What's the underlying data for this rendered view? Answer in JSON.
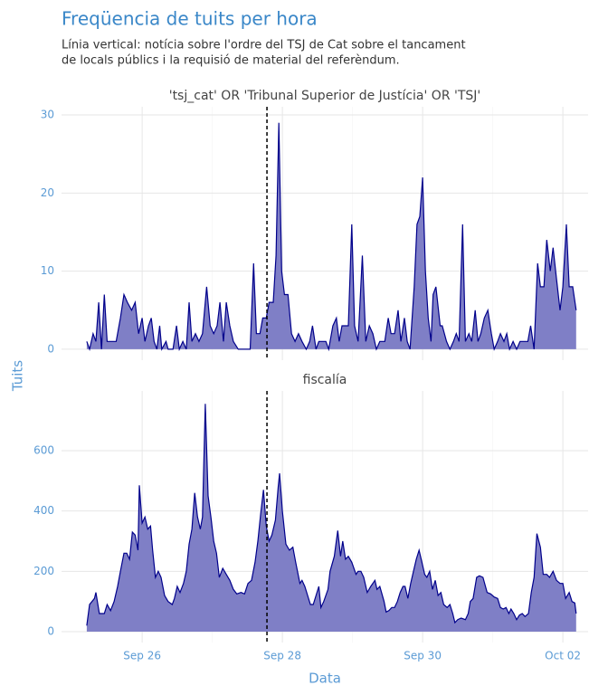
{
  "title": "Freqüencia de tuits per hora",
  "subtitle": [
    "Línia vertical: notícia sobre l'ordre del TSJ de Cat sobre el tancament",
    "de locals públics i la requisió de material del referèndum."
  ],
  "xlabel": "Data",
  "ylabel": "Tuits",
  "xlim": [
    24.85,
    32.36
  ],
  "xticks": [
    {
      "value": 26,
      "label": "Sep 26"
    },
    {
      "value": 28,
      "label": "Sep 28"
    },
    {
      "value": 30,
      "label": "Sep 30"
    },
    {
      "value": 32,
      "label": "Oct 02"
    }
  ],
  "xminor": [
    27,
    29,
    31
  ],
  "vline": 27.78,
  "chart_data": [
    {
      "type": "area",
      "title": "'tsj_cat' OR 'Tribunal Superior de Justícia' OR 'TSJ'",
      "color": "#00008b",
      "fill": "#7f7fc6",
      "ylim": [
        -1.4,
        31.05
      ],
      "yticks": [
        0,
        10,
        20,
        30
      ],
      "grid": true,
      "x": [
        25.21,
        25.25,
        25.3,
        25.34,
        25.38,
        25.42,
        25.46,
        25.5,
        25.63,
        25.69,
        25.74,
        25.79,
        25.85,
        25.9,
        25.95,
        26.0,
        26.04,
        26.09,
        26.13,
        26.17,
        26.21,
        26.25,
        26.28,
        26.34,
        26.37,
        26.44,
        26.49,
        26.53,
        26.58,
        26.63,
        26.67,
        26.71,
        26.76,
        26.81,
        26.86,
        26.92,
        26.97,
        27.02,
        27.07,
        27.11,
        27.16,
        27.2,
        27.25,
        27.3,
        27.37,
        27.54,
        27.59,
        27.63,
        27.68,
        27.72,
        27.77,
        27.81,
        27.87,
        27.91,
        27.95,
        27.99,
        28.03,
        28.08,
        28.13,
        28.18,
        28.23,
        28.28,
        28.34,
        28.39,
        28.43,
        28.48,
        28.52,
        28.62,
        28.66,
        28.72,
        28.77,
        28.81,
        28.85,
        28.94,
        28.99,
        29.03,
        29.08,
        29.14,
        29.19,
        29.24,
        29.29,
        29.34,
        29.39,
        29.46,
        29.51,
        29.55,
        29.6,
        29.65,
        29.69,
        29.74,
        29.78,
        29.82,
        29.88,
        29.92,
        29.96,
        30.0,
        30.04,
        30.08,
        30.12,
        30.15,
        30.19,
        30.25,
        30.28,
        30.34,
        30.39,
        30.44,
        30.48,
        30.52,
        30.57,
        30.61,
        30.66,
        30.7,
        30.75,
        30.79,
        30.83,
        30.88,
        30.93,
        30.98,
        31.02,
        31.07,
        31.11,
        31.16,
        31.2,
        31.24,
        31.29,
        31.34,
        31.39,
        31.45,
        31.5,
        31.54,
        31.59,
        31.64,
        31.68,
        31.73,
        31.77,
        31.82,
        31.86,
        31.91,
        31.96,
        32.0,
        32.05,
        32.09,
        32.14,
        32.19
      ],
      "values": [
        1,
        0,
        2,
        1,
        6,
        0,
        7,
        1,
        1,
        4,
        7,
        6,
        5,
        6,
        2,
        4,
        1,
        3,
        4,
        1,
        0,
        3,
        0,
        1,
        0,
        0,
        3,
        0,
        1,
        0,
        6,
        1,
        2,
        1,
        2,
        8,
        3,
        2,
        3,
        6,
        1,
        6,
        3,
        1,
        0,
        0,
        11,
        2,
        2,
        4,
        4,
        6,
        6,
        12,
        29,
        10,
        7,
        7,
        2,
        1,
        2,
        1,
        0,
        1,
        3,
        0,
        1,
        1,
        0,
        3,
        4,
        1,
        3,
        3,
        16,
        3,
        1,
        12,
        1,
        3,
        2,
        0,
        1,
        1,
        4,
        2,
        2,
        5,
        1,
        4,
        1,
        0,
        8,
        16,
        17,
        22,
        10,
        4,
        1,
        7,
        8,
        3,
        3,
        1,
        0,
        1,
        2,
        1,
        16,
        1,
        2,
        1,
        5,
        1,
        2,
        4,
        5,
        2,
        0,
        1,
        2,
        1,
        2,
        0,
        1,
        0,
        1,
        1,
        1,
        3,
        0,
        11,
        8,
        8,
        14,
        10,
        13,
        9,
        5,
        8,
        16,
        8,
        8,
        5
      ]
    },
    {
      "type": "area",
      "title": "fiscalía",
      "color": "#00008b",
      "fill": "#7f7fc6",
      "ylim": [
        -36,
        798
      ],
      "yticks": [
        0,
        200,
        400,
        600
      ],
      "grid": true,
      "x": [
        25.21,
        25.25,
        25.32,
        25.34,
        25.39,
        25.46,
        25.5,
        25.55,
        25.6,
        25.65,
        25.69,
        25.74,
        25.78,
        25.82,
        25.86,
        25.9,
        25.94,
        25.96,
        26.0,
        26.04,
        26.08,
        26.12,
        26.15,
        26.19,
        26.23,
        26.27,
        26.32,
        26.37,
        26.43,
        26.46,
        26.5,
        26.54,
        26.59,
        26.63,
        26.67,
        26.71,
        26.75,
        26.79,
        26.83,
        26.86,
        26.9,
        26.94,
        26.98,
        27.02,
        27.06,
        27.1,
        27.15,
        27.2,
        27.25,
        27.3,
        27.35,
        27.41,
        27.46,
        27.51,
        27.56,
        27.61,
        27.65,
        27.69,
        27.73,
        27.77,
        27.81,
        27.85,
        27.9,
        27.94,
        27.96,
        28.0,
        28.05,
        28.1,
        28.15,
        28.19,
        28.25,
        28.28,
        28.32,
        28.36,
        28.4,
        28.44,
        28.48,
        28.52,
        28.55,
        28.59,
        28.65,
        28.68,
        28.74,
        28.79,
        28.83,
        28.86,
        28.9,
        28.94,
        28.99,
        29.05,
        29.08,
        29.12,
        29.16,
        29.21,
        29.26,
        29.32,
        29.35,
        29.39,
        29.45,
        29.48,
        29.52,
        29.56,
        29.6,
        29.64,
        29.68,
        29.72,
        29.75,
        29.79,
        29.83,
        29.87,
        29.91,
        29.95,
        29.99,
        30.03,
        30.06,
        30.1,
        30.14,
        30.18,
        30.22,
        30.26,
        30.3,
        30.35,
        30.39,
        30.43,
        30.46,
        30.5,
        30.55,
        30.61,
        30.65,
        30.68,
        30.72,
        30.77,
        30.81,
        30.86,
        30.92,
        30.97,
        31.02,
        31.07,
        31.11,
        31.15,
        31.19,
        31.23,
        31.26,
        31.3,
        31.34,
        31.38,
        31.42,
        31.46,
        31.51,
        31.55,
        31.59,
        31.63,
        31.68,
        31.72,
        31.77,
        31.81,
        31.86,
        31.91,
        31.96,
        32.0,
        32.04,
        32.09,
        32.13,
        32.17,
        32.19
      ],
      "values": [
        20,
        90,
        110,
        130,
        60,
        60,
        90,
        70,
        100,
        150,
        200,
        260,
        260,
        240,
        330,
        320,
        270,
        485,
        360,
        380,
        340,
        350,
        270,
        180,
        200,
        180,
        120,
        100,
        90,
        110,
        150,
        130,
        160,
        200,
        290,
        340,
        460,
        380,
        340,
        380,
        755,
        450,
        380,
        300,
        260,
        180,
        210,
        190,
        170,
        140,
        125,
        130,
        125,
        160,
        170,
        230,
        300,
        390,
        470,
        350,
        300,
        320,
        370,
        480,
        525,
        400,
        290,
        270,
        280,
        230,
        160,
        170,
        150,
        120,
        90,
        90,
        120,
        150,
        80,
        100,
        140,
        200,
        250,
        335,
        250,
        300,
        240,
        250,
        230,
        190,
        200,
        200,
        180,
        130,
        150,
        170,
        140,
        150,
        100,
        65,
        70,
        80,
        80,
        100,
        130,
        150,
        150,
        110,
        160,
        200,
        240,
        270,
        230,
        190,
        180,
        200,
        140,
        170,
        120,
        130,
        90,
        80,
        90,
        60,
        30,
        40,
        45,
        40,
        60,
        100,
        110,
        180,
        185,
        180,
        130,
        125,
        115,
        110,
        80,
        75,
        80,
        60,
        75,
        60,
        40,
        55,
        60,
        50,
        60,
        130,
        180,
        325,
        280,
        190,
        190,
        180,
        200,
        170,
        160,
        160,
        110,
        130,
        100,
        95,
        60
      ]
    }
  ]
}
